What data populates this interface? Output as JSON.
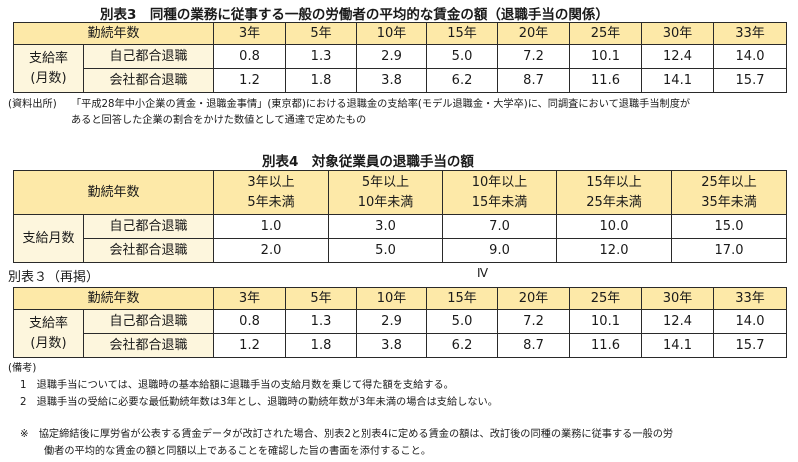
{
  "table3": {
    "title": "別表3　同種の業務に従事する一般の労働者の平均的な賃金の額（退職手当の関係）",
    "header_label": "勤続年数",
    "years": [
      "3年",
      "5年",
      "10年",
      "15年",
      "20年",
      "25年",
      "30年",
      "33年"
    ],
    "group_label_line1": "支給率",
    "group_label_line2": "(月数)",
    "rows": [
      {
        "label": "自己都合退職",
        "values": [
          "0.8",
          "1.3",
          "2.9",
          "5.0",
          "7.2",
          "10.1",
          "12.4",
          "14.0"
        ]
      },
      {
        "label": "会社都合退職",
        "values": [
          "1.2",
          "1.8",
          "3.8",
          "6.2",
          "8.7",
          "11.6",
          "14.1",
          "15.7"
        ]
      }
    ]
  },
  "source_note": {
    "label": "(資料出所)",
    "line1": "「平成28年中小企業の賃金・退職金事情」(東京都)における退職金の支給率(モデル退職金・大学卒)に、同調査において退職手当制度が",
    "line2": "あると回答した企業の割合をかけた数値として通達で定めたもの"
  },
  "table4": {
    "title": "別表4　対象従業員の退職手当の額",
    "header_label": "勤続年数",
    "ranges": [
      {
        "from": "3年以上",
        "to": "5年未満"
      },
      {
        "from": "5年以上",
        "to": "10年未満"
      },
      {
        "from": "10年以上",
        "to": "15年未満"
      },
      {
        "from": "15年以上",
        "to": "25年未満"
      },
      {
        "from": "25年以上",
        "to": "35年未満"
      }
    ],
    "group_label": "支給月数",
    "rows": [
      {
        "label": "自己都合退職",
        "values": [
          "1.0",
          "3.0",
          "7.0",
          "10.0",
          "15.0"
        ]
      },
      {
        "label": "会社都合退職",
        "values": [
          "2.0",
          "5.0",
          "9.0",
          "12.0",
          "17.0"
        ]
      }
    ]
  },
  "table3_repost": {
    "title": "別表３（再掲）",
    "marker": "Ⅳ",
    "header_label": "勤続年数",
    "years": [
      "3年",
      "5年",
      "10年",
      "15年",
      "20年",
      "25年",
      "30年",
      "33年"
    ],
    "group_label_line1": "支給率",
    "group_label_line2": "(月数)",
    "rows": [
      {
        "label": "自己都合退職",
        "values": [
          "0.8",
          "1.3",
          "2.9",
          "5.0",
          "7.2",
          "10.1",
          "12.4",
          "14.0"
        ]
      },
      {
        "label": "会社都合退職",
        "values": [
          "1.2",
          "1.8",
          "3.8",
          "6.2",
          "8.7",
          "11.6",
          "14.1",
          "15.7"
        ]
      }
    ]
  },
  "remarks": {
    "heading": "(備考)",
    "item1": "1　退職手当については、退職時の基本給額に退職手当の支給月数を乗じて得た額を支給する。",
    "item2": "2　退職手当の受給に必要な最低勤続年数は3年とし、退職時の勤続年数が3年未満の場合は支給しない。",
    "note_line1": "※　協定締結後に厚労省が公表する賃金データが改訂された場合、別表2と別表4に定める賃金の額は、改訂後の同種の業務に従事する一般の労",
    "note_line2": "働者の平均的な賃金の額と同額以上であることを確認した旨の書面を添付すること。"
  }
}
